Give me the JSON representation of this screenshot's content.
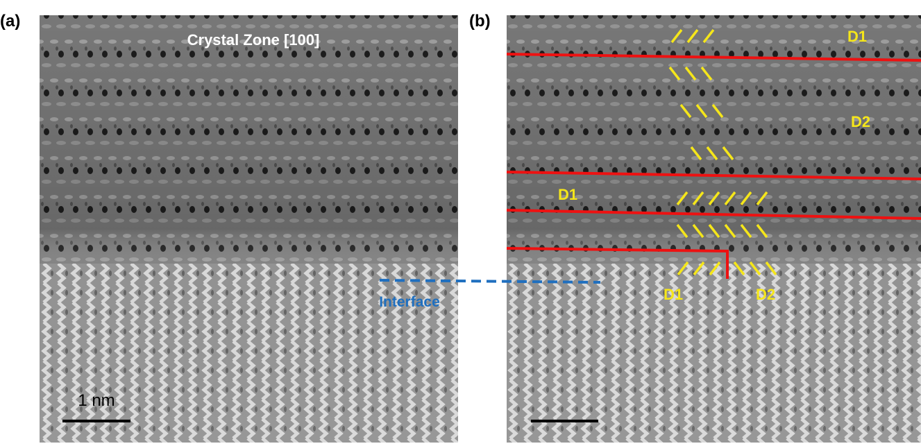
{
  "panel_a": {
    "label": "(a)",
    "title": "Crystal Zone [100]",
    "scale_bar": "1 nm",
    "annotation": "Interface"
  },
  "panel_b": {
    "label": "(b)",
    "domains": [
      "D1",
      "D2",
      "D1",
      "D1",
      "D2"
    ]
  }
}
